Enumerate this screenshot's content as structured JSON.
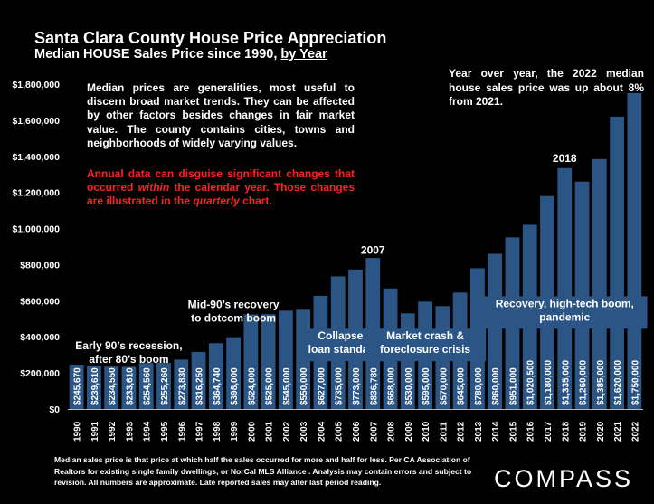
{
  "title": "Santa Clara County House Price Appreciation",
  "subtitle_prefix": "Median HOUSE Sales Price since 1990, ",
  "subtitle_link": "by Year",
  "note_general": "Median prices are generalities, most useful to discern broad market trends. They can be affected by other factors besides changes in fair market value. The county contains cities, towns and neighborhoods of widely varying values.",
  "note_red_1": "Annual data can disguise significant changes that occurred ",
  "note_red_within": "within",
  "note_red_2": " the calendar year. Those changes are illustrated in the ",
  "note_red_quarterly": "quarterly",
  "note_red_3": " chart.",
  "yoy_note": "Year over year, the 2022 median house sales price was up about 8% from 2021.",
  "footnote": "Median sales price is that price at which half the sales occurred for more and half for less. Per CA Association of Realtors for existing single family dwellings, or NorCal MLS Alliance . Analysis may contain errors and subject to revision. All numbers are approximate. Late reported sales may alter last period reading.",
  "logo": "COMPASS",
  "chart_data": {
    "type": "bar",
    "categories": [
      "1990",
      "1991",
      "1992",
      "1993",
      "1994",
      "1995",
      "1996",
      "1997",
      "1998",
      "1999",
      "2000",
      "2001",
      "2002",
      "2003",
      "2004",
      "2005",
      "2006",
      "2007",
      "2008",
      "2009",
      "2010",
      "2011",
      "2012",
      "2013",
      "2014",
      "2015",
      "2016",
      "2017",
      "2018",
      "2019",
      "2020",
      "2021",
      "2022"
    ],
    "values": [
      245670,
      239610,
      234550,
      233610,
      254560,
      255260,
      273830,
      316250,
      364740,
      398000,
      524000,
      525000,
      545000,
      550000,
      627000,
      735000,
      773000,
      836780,
      668000,
      530000,
      595000,
      570000,
      645000,
      780000,
      860000,
      951000,
      1020500,
      1180000,
      1335000,
      1260000,
      1385000,
      1620000,
      1750000
    ],
    "value_labels": [
      "$245,670",
      "$239,610",
      "$234,550",
      "$233,610",
      "$254,560",
      "$255,260",
      "$273,830",
      "$316,250",
      "$364,740",
      "$398,000",
      "$524,000",
      "$525,000",
      "$545,000",
      "$550,000",
      "$627,000",
      "$735,000",
      "$773,000",
      "$836,780",
      "$668,000",
      "$530,000",
      "$595,000",
      "$570,000",
      "$645,000",
      "$780,000",
      "$860,000",
      "$951,000",
      "$1,020,500",
      "$1,180,000",
      "$1,335,000",
      "$1,260,000",
      "$1,385,000",
      "$1,620,000",
      "$1,750,000"
    ],
    "ylim": [
      0,
      1800000
    ],
    "yticks": [
      0,
      200000,
      400000,
      600000,
      800000,
      1000000,
      1200000,
      1400000,
      1600000,
      1800000
    ],
    "ytick_labels": [
      "$0",
      "$200,000",
      "$400,000",
      "$600,000",
      "$800,000",
      "$1,000,000",
      "$1,200,000",
      "$1,400,000",
      "$1,600,000",
      "$1,800,000"
    ],
    "bar_color": "#2b5585",
    "annotations": [
      {
        "text": "Early 90's recession, after 80's boom",
        "lines": [
          "Early 90’s recession,",
          "after 80’s boom"
        ],
        "year": "1993",
        "y": 370000,
        "style": "plain"
      },
      {
        "text": "Mid-90's recovery to dotcom boom",
        "lines": [
          "Mid-90’s recovery",
          "to dotcom boom"
        ],
        "year": "1999",
        "y": 600000,
        "style": "plain"
      },
      {
        "text": "2007",
        "lines": [
          "2007"
        ],
        "year": "2007",
        "y": 900000,
        "style": "plain"
      },
      {
        "text": "Collapse in loan standards",
        "lines": [
          "Collapse in",
          "loan standards"
        ],
        "year": "2005.5",
        "y": 425000,
        "style": "onbar"
      },
      {
        "text": "Market crash & foreclosure crisis",
        "lines": [
          "Market crash &",
          "foreclosure crisis"
        ],
        "year": "2010",
        "y": 425000,
        "style": "onbar"
      },
      {
        "text": "2018",
        "lines": [
          "2018"
        ],
        "year": "2018",
        "y": 1410000,
        "style": "plain"
      },
      {
        "text": "Recovery, high-tech boom, pandemic",
        "lines": [
          "Recovery, high-tech boom,",
          "pandemic"
        ],
        "year": "2018",
        "y": 605000,
        "style": "onbar"
      }
    ]
  }
}
